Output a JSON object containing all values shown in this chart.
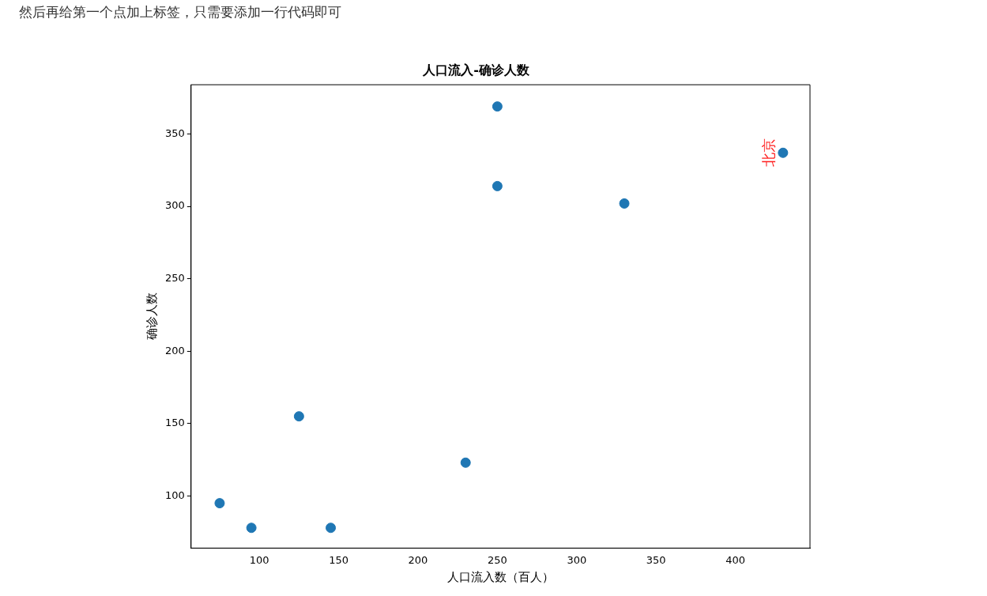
{
  "chart_data": {
    "type": "scatter",
    "title": "人口流入-确诊人数",
    "xlabel": "人口流入数（百人）",
    "ylabel": "确诊人数",
    "x": [
      75,
      95,
      125,
      145,
      230,
      250,
      250,
      330,
      430
    ],
    "values": [
      95,
      78,
      155,
      78,
      123,
      369,
      314,
      302,
      337
    ],
    "color": "#1f77b4",
    "marker": "circle",
    "xlim": [
      57,
      447
    ],
    "ylim": [
      64,
      384
    ],
    "xticks": [
      100,
      150,
      200,
      250,
      300,
      350,
      400
    ],
    "yticks": [
      100,
      150,
      200,
      250,
      300,
      350
    ],
    "grid": false,
    "legend": false,
    "annotations": [
      "然后再给第一个点加上标签，只需要添加一行代码即可",
      {
        "text": "北京",
        "x": 430,
        "y": 337
      }
    ]
  }
}
